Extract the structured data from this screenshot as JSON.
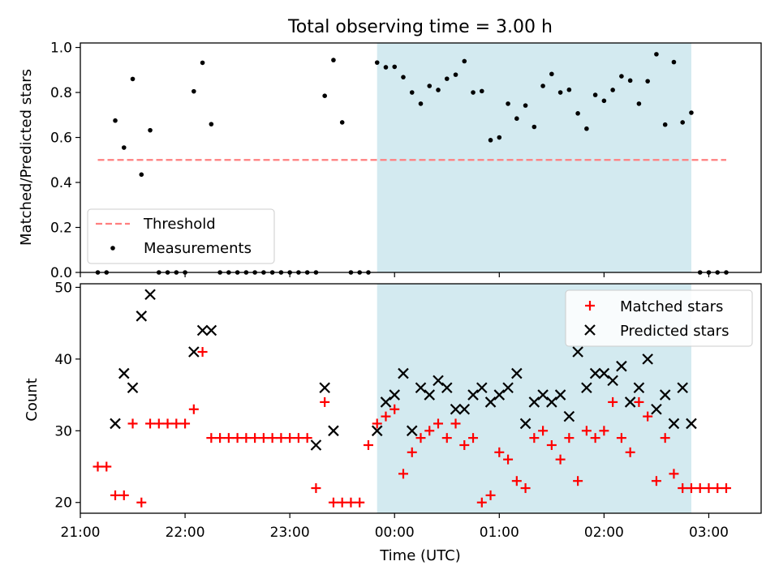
{
  "chart_data": [
    {
      "type": "scatter",
      "title": "Total observing time = 3.00 h",
      "xlabel": "",
      "ylabel": "Matched/Predicted stars",
      "ylim": [
        0.0,
        1.02
      ],
      "yticks": [
        "0.0",
        "0.2",
        "0.4",
        "0.6",
        "0.8",
        "1.0"
      ],
      "highlight_span": [
        "23:50",
        "02:50"
      ],
      "threshold": {
        "value": 0.5,
        "x": [
          "21:10",
          "03:10"
        ],
        "color": "#ff7f7f"
      },
      "legend": {
        "position": "lower left",
        "entries": [
          "Threshold",
          "Measurements"
        ]
      },
      "series": [
        {
          "name": "Measurements",
          "color": "#000000",
          "points": [
            [
              "21:10",
              0.0
            ],
            [
              "21:15",
              0.0
            ],
            [
              "21:20",
              0.675
            ],
            [
              "21:25",
              0.555
            ],
            [
              "21:30",
              0.86
            ],
            [
              "21:35",
              0.435
            ],
            [
              "21:40",
              0.632
            ],
            [
              "21:45",
              0.0
            ],
            [
              "21:50",
              0.0
            ],
            [
              "21:55",
              0.0
            ],
            [
              "22:00",
              0.0
            ],
            [
              "22:05",
              0.805
            ],
            [
              "22:10",
              0.932
            ],
            [
              "22:15",
              0.659
            ],
            [
              "22:20",
              0.0
            ],
            [
              "22:25",
              0.0
            ],
            [
              "22:30",
              0.0
            ],
            [
              "22:35",
              0.0
            ],
            [
              "22:40",
              0.0
            ],
            [
              "22:45",
              0.0
            ],
            [
              "22:50",
              0.0
            ],
            [
              "22:55",
              0.0
            ],
            [
              "23:00",
              0.0
            ],
            [
              "23:05",
              0.0
            ],
            [
              "23:10",
              0.0
            ],
            [
              "23:15",
              0.0
            ],
            [
              "23:20",
              0.785
            ],
            [
              "23:25",
              0.944
            ],
            [
              "23:30",
              0.667
            ],
            [
              "23:35",
              0.0
            ],
            [
              "23:40",
              0.0
            ],
            [
              "23:45",
              0.0
            ],
            [
              "23:50",
              0.933
            ],
            [
              "23:55",
              0.912
            ],
            [
              "00:00",
              0.914
            ],
            [
              "00:05",
              0.868
            ],
            [
              "00:10",
              0.8
            ],
            [
              "00:15",
              0.75
            ],
            [
              "00:20",
              0.829
            ],
            [
              "00:25",
              0.811
            ],
            [
              "00:30",
              0.861
            ],
            [
              "00:35",
              0.879
            ],
            [
              "00:40",
              0.939
            ],
            [
              "00:45",
              0.8
            ],
            [
              "00:50",
              0.806
            ],
            [
              "00:55",
              0.588
            ],
            [
              "01:00",
              0.6
            ],
            [
              "01:05",
              0.75
            ],
            [
              "01:10",
              0.684
            ],
            [
              "01:15",
              0.742
            ],
            [
              "01:20",
              0.647
            ],
            [
              "01:25",
              0.829
            ],
            [
              "01:30",
              0.882
            ],
            [
              "01:35",
              0.8
            ],
            [
              "01:40",
              0.812
            ],
            [
              "01:45",
              0.707
            ],
            [
              "01:50",
              0.639
            ],
            [
              "01:55",
              0.789
            ],
            [
              "02:00",
              0.763
            ],
            [
              "02:05",
              0.811
            ],
            [
              "02:10",
              0.872
            ],
            [
              "02:15",
              0.853
            ],
            [
              "02:20",
              0.75
            ],
            [
              "02:25",
              0.85
            ],
            [
              "02:30",
              0.97
            ],
            [
              "02:35",
              0.657
            ],
            [
              "02:40",
              0.935
            ],
            [
              "02:45",
              0.667
            ],
            [
              "02:50",
              0.71
            ],
            [
              "02:55",
              0.0
            ],
            [
              "03:00",
              0.0
            ],
            [
              "03:05",
              0.0
            ],
            [
              "03:10",
              0.0
            ]
          ]
        }
      ]
    },
    {
      "type": "scatter",
      "title": "",
      "xlabel": "Time (UTC)",
      "ylabel": "Count",
      "ylim": [
        18.5,
        50.5
      ],
      "yticks": [
        "20",
        "30",
        "40",
        "50"
      ],
      "xlim": [
        "21:00",
        "03:30"
      ],
      "xticks": [
        "21:00",
        "22:00",
        "23:00",
        "00:00",
        "01:00",
        "02:00",
        "03:00"
      ],
      "highlight_span": [
        "23:50",
        "02:50"
      ],
      "highlight_color": "#d3eaf0",
      "legend": {
        "position": "upper right",
        "entries": [
          "Matched stars",
          "Predicted stars"
        ]
      },
      "series": [
        {
          "name": "Matched stars",
          "color": "#ff0000",
          "points": [
            [
              "21:10",
              25
            ],
            [
              "21:15",
              25
            ],
            [
              "21:20",
              21
            ],
            [
              "21:25",
              21
            ],
            [
              "21:30",
              31
            ],
            [
              "21:35",
              20
            ],
            [
              "21:40",
              31
            ],
            [
              "21:45",
              31
            ],
            [
              "21:50",
              31
            ],
            [
              "21:55",
              31
            ],
            [
              "22:00",
              31
            ],
            [
              "22:05",
              33
            ],
            [
              "22:10",
              41
            ],
            [
              "22:15",
              29
            ],
            [
              "22:20",
              29
            ],
            [
              "22:25",
              29
            ],
            [
              "22:30",
              29
            ],
            [
              "22:35",
              29
            ],
            [
              "22:40",
              29
            ],
            [
              "22:45",
              29
            ],
            [
              "22:50",
              29
            ],
            [
              "22:55",
              29
            ],
            [
              "23:00",
              29
            ],
            [
              "23:05",
              29
            ],
            [
              "23:10",
              29
            ],
            [
              "23:15",
              22
            ],
            [
              "23:20",
              34
            ],
            [
              "23:25",
              20
            ],
            [
              "23:30",
              20
            ],
            [
              "23:35",
              20
            ],
            [
              "23:40",
              20
            ],
            [
              "23:45",
              28
            ],
            [
              "23:50",
              31
            ],
            [
              "23:55",
              32
            ],
            [
              "00:00",
              33
            ],
            [
              "00:05",
              24
            ],
            [
              "00:10",
              27
            ],
            [
              "00:15",
              29
            ],
            [
              "00:20",
              30
            ],
            [
              "00:25",
              31
            ],
            [
              "00:30",
              29
            ],
            [
              "00:35",
              31
            ],
            [
              "00:40",
              28
            ],
            [
              "00:45",
              29
            ],
            [
              "00:50",
              20
            ],
            [
              "00:55",
              21
            ],
            [
              "01:00",
              27
            ],
            [
              "01:05",
              26
            ],
            [
              "01:10",
              23
            ],
            [
              "01:15",
              22
            ],
            [
              "01:20",
              29
            ],
            [
              "01:25",
              30
            ],
            [
              "01:30",
              28
            ],
            [
              "01:35",
              26
            ],
            [
              "01:40",
              29
            ],
            [
              "01:45",
              23
            ],
            [
              "01:50",
              30
            ],
            [
              "01:55",
              29
            ],
            [
              "02:00",
              30
            ],
            [
              "02:05",
              34
            ],
            [
              "02:10",
              29
            ],
            [
              "02:15",
              27
            ],
            [
              "02:20",
              34
            ],
            [
              "02:25",
              32
            ],
            [
              "02:30",
              23
            ],
            [
              "02:35",
              29
            ],
            [
              "02:40",
              24
            ],
            [
              "02:45",
              22
            ],
            [
              "02:50",
              22
            ],
            [
              "02:55",
              22
            ],
            [
              "03:00",
              22
            ],
            [
              "03:05",
              22
            ],
            [
              "03:10",
              22
            ]
          ]
        },
        {
          "name": "Predicted stars",
          "color": "#000000",
          "points": [
            [
              "21:20",
              31
            ],
            [
              "21:25",
              38
            ],
            [
              "21:30",
              36
            ],
            [
              "21:35",
              46
            ],
            [
              "21:40",
              49
            ],
            [
              "22:05",
              41
            ],
            [
              "22:10",
              44
            ],
            [
              "22:15",
              44
            ],
            [
              "23:15",
              28
            ],
            [
              "23:20",
              36
            ],
            [
              "23:25",
              30
            ],
            [
              "23:50",
              30
            ],
            [
              "23:55",
              34
            ],
            [
              "00:00",
              35
            ],
            [
              "00:05",
              38
            ],
            [
              "00:10",
              30
            ],
            [
              "00:15",
              36
            ],
            [
              "00:20",
              35
            ],
            [
              "00:25",
              37
            ],
            [
              "00:30",
              36
            ],
            [
              "00:35",
              33
            ],
            [
              "00:40",
              33
            ],
            [
              "00:45",
              35
            ],
            [
              "00:50",
              36
            ],
            [
              "00:55",
              34
            ],
            [
              "01:00",
              35
            ],
            [
              "01:05",
              36
            ],
            [
              "01:10",
              38
            ],
            [
              "01:15",
              31
            ],
            [
              "01:20",
              34
            ],
            [
              "01:25",
              35
            ],
            [
              "01:30",
              34
            ],
            [
              "01:35",
              35
            ],
            [
              "01:40",
              32
            ],
            [
              "01:45",
              41
            ],
            [
              "01:50",
              36
            ],
            [
              "01:55",
              38
            ],
            [
              "02:00",
              38
            ],
            [
              "02:05",
              37
            ],
            [
              "02:10",
              39
            ],
            [
              "02:15",
              34
            ],
            [
              "02:20",
              36
            ],
            [
              "02:25",
              40
            ],
            [
              "02:30",
              33
            ],
            [
              "02:35",
              35
            ],
            [
              "02:40",
              31
            ],
            [
              "02:45",
              36
            ],
            [
              "02:50",
              31
            ]
          ]
        }
      ]
    }
  ]
}
